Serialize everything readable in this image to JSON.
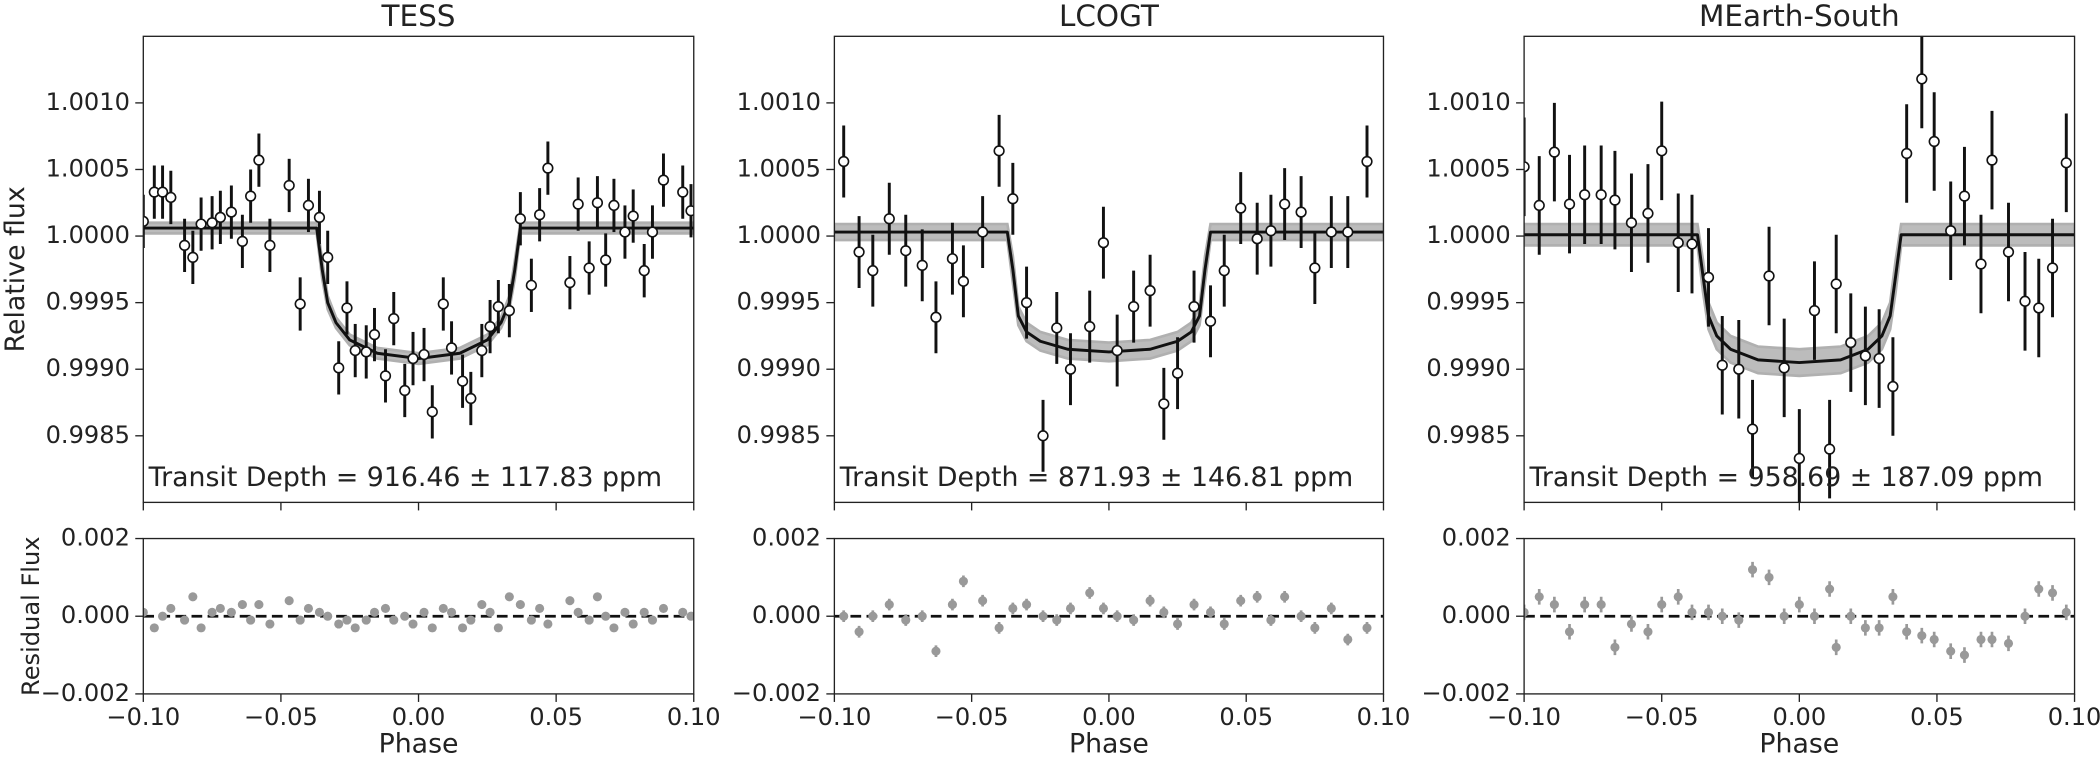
{
  "chart_data": [
    {
      "type": "scatter",
      "title": "TESS",
      "annotation": "Transit Depth = 916.46 ± 117.83 ppm",
      "ylabel": "Relative flux",
      "residual_ylabel": "Residual Flux",
      "xlabel": "Phase",
      "xlim": [
        -0.1,
        0.1
      ],
      "xticks": [
        {
          "value": -0.1,
          "label": "−0.10"
        },
        {
          "value": -0.05,
          "label": "−0.05"
        },
        {
          "value": 0,
          "label": "0.00"
        },
        {
          "value": 0.05,
          "label": "0.05"
        },
        {
          "value": 0.1,
          "label": "0.10"
        }
      ],
      "ylim": [
        0.998,
        1.0015
      ],
      "yticks": [
        0.9985,
        {
          "value": 0.999,
          "label": "0.9990"
        },
        0.9995,
        {
          "value": 1,
          "label": "1.0000"
        },
        1.0005,
        {
          "value": 1.001,
          "label": "1.0010"
        }
      ],
      "residual_ylim": [
        -0.002,
        0.002
      ],
      "residual_yticks": [
        {
          "value": -0.002,
          "label": "−0.002"
        },
        {
          "value": 0,
          "label": "0.000"
        },
        0.002
      ],
      "x": [
        -0.1,
        -0.096,
        -0.093,
        -0.09,
        -0.085,
        -0.082,
        -0.079,
        -0.075,
        -0.072,
        -0.068,
        -0.064,
        -0.061,
        -0.058,
        -0.054,
        -0.047,
        -0.043,
        -0.04,
        -0.036,
        -0.033,
        -0.029,
        -0.026,
        -0.023,
        -0.019,
        -0.016,
        -0.012,
        -0.009,
        -0.005,
        -0.002,
        0.002,
        0.005,
        0.009,
        0.012,
        0.016,
        0.019,
        0.023,
        0.026,
        0.029,
        0.033,
        0.037,
        0.041,
        0.044,
        0.047,
        0.055,
        0.058,
        0.062,
        0.065,
        0.068,
        0.071,
        0.075,
        0.078,
        0.082,
        0.085,
        0.089,
        0.096,
        0.099
      ],
      "values": [
        1.00011,
        1.00033,
        1.00033,
        1.00029,
        0.99993,
        0.99984,
        1.00009,
        1.0001,
        1.00014,
        1.00018,
        0.99996,
        1.0003,
        1.00057,
        0.99993,
        1.00038,
        0.99949,
        1.00023,
        1.00014,
        0.99984,
        0.99901,
        0.99946,
        0.99914,
        0.99913,
        0.99926,
        0.99895,
        0.99938,
        0.99884,
        0.99908,
        0.99911,
        0.99868,
        0.99949,
        0.99916,
        0.99891,
        0.99878,
        0.99914,
        0.99932,
        0.99947,
        0.99944,
        1.00013,
        0.99963,
        1.00016,
        1.00051,
        0.99965,
        1.00024,
        0.99976,
        1.00025,
        0.99982,
        1.00023,
        1.00003,
        1.00015,
        0.99974,
        1.00003,
        1.00042,
        1.00033,
        1.00019
      ],
      "error": 0.0002,
      "residuals": [
        0.0001,
        -0.0003,
        0.0,
        0.0002,
        -0.0001,
        0.0005,
        -0.0003,
        0.0001,
        0.0002,
        0.0001,
        0.0003,
        -0.0001,
        0.0003,
        -0.0002,
        0.0004,
        -0.0001,
        0.0002,
        0.0001,
        0.0,
        -0.0002,
        -0.0001,
        -0.0003,
        -0.0001,
        0.0001,
        0.0002,
        -0.0001,
        0.0,
        -0.0002,
        0.0001,
        -0.0003,
        0.0002,
        0.0001,
        -0.0003,
        -0.0001,
        0.0003,
        0.0001,
        -0.0003,
        0.0005,
        0.0003,
        -0.0001,
        0.0002,
        -0.0002,
        0.0004,
        0.0001,
        -0.0001,
        0.0005,
        0.0,
        -0.0003,
        0.0001,
        -0.0002,
        0.0001,
        -0.0001,
        0.0002,
        0.0001,
        0.0
      ],
      "residual_error": 0.0001,
      "model_x": [
        -0.1,
        -0.037,
        -0.035,
        -0.033,
        -0.03,
        -0.025,
        -0.015,
        0,
        0.015,
        0.025,
        0.03,
        0.033,
        0.035,
        0.037,
        0.1
      ],
      "model": [
        1.00006,
        1.00006,
        0.99975,
        0.9995,
        0.99935,
        0.99922,
        0.99912,
        0.99908,
        0.99912,
        0.99922,
        0.99935,
        0.9995,
        0.99975,
        1.00006,
        1.00006
      ],
      "model_lower": [
        1.00002,
        1.00002,
        0.99968,
        0.99945,
        0.99931,
        0.99918,
        0.99908,
        0.99904,
        0.99908,
        0.99918,
        0.99931,
        0.99945,
        0.99968,
        1.00002,
        1.00002
      ],
      "model_upper": [
        1.0001,
        1.0001,
        0.99982,
        0.99955,
        0.99939,
        0.99926,
        0.99916,
        0.99912,
        0.99916,
        0.99926,
        0.99939,
        0.99955,
        0.99982,
        1.0001,
        1.0001
      ],
      "color": "#111111",
      "point_color": "#ffffff",
      "band_color": "#b0b0b0",
      "residual_color": "#999999"
    },
    {
      "type": "scatter",
      "title": "LCOGT",
      "annotation": "Transit Depth = 871.93 ± 146.81 ppm",
      "xlabel": "Phase",
      "xlim": [
        -0.1,
        0.1
      ],
      "xticks": [
        {
          "value": -0.1,
          "label": "−0.10"
        },
        {
          "value": -0.05,
          "label": "−0.05"
        },
        {
          "value": 0,
          "label": "0.00"
        },
        {
          "value": 0.05,
          "label": "0.05"
        },
        {
          "value": 0.1,
          "label": "0.10"
        }
      ],
      "ylim": [
        0.998,
        1.0015
      ],
      "yticks": [
        0.9985,
        {
          "value": 0.999,
          "label": "0.9990"
        },
        0.9995,
        {
          "value": 1,
          "label": "1.0000"
        },
        1.0005,
        {
          "value": 1.001,
          "label": "1.0010"
        }
      ],
      "residual_ylim": [
        -0.002,
        0.002
      ],
      "residual_yticks": [
        {
          "value": -0.002,
          "label": "−0.002"
        },
        {
          "value": 0,
          "label": "0.000"
        },
        0.002
      ],
      "x": [
        -0.0966,
        -0.091,
        -0.086,
        -0.08,
        -0.074,
        -0.068,
        -0.063,
        -0.057,
        -0.053,
        -0.046,
        -0.04,
        -0.035,
        -0.03,
        -0.024,
        -0.019,
        -0.014,
        -0.007,
        -0.002,
        0.003,
        0.009,
        0.015,
        0.02,
        0.025,
        0.031,
        0.037,
        0.042,
        0.048,
        0.054,
        0.059,
        0.064,
        0.07,
        0.075,
        0.081,
        0.087,
        0.094
      ],
      "values": [
        1.00056,
        0.99988,
        0.99974,
        1.00013,
        0.99989,
        0.99978,
        0.99939,
        0.99983,
        0.99966,
        1.00003,
        1.00064,
        1.00028,
        0.9995,
        0.9985,
        0.99931,
        0.999,
        0.99932,
        0.99995,
        0.99914,
        0.99947,
        0.99959,
        0.99874,
        0.99897,
        0.99947,
        0.99936,
        0.99974,
        1.00021,
        0.99998,
        1.00004,
        1.00024,
        1.00018,
        0.99976,
        1.00003,
        1.00003,
        1.00056
      ],
      "error": 0.00027,
      "residuals": [
        0.0,
        -0.0004,
        0.0,
        0.0003,
        -0.0001,
        0.0,
        -0.0009,
        0.0003,
        0.0009,
        0.0004,
        -0.0003,
        0.0002,
        0.0003,
        0.0,
        -0.0001,
        0.0002,
        0.0006,
        0.0002,
        0.0,
        -0.0001,
        0.0004,
        0.0001,
        -0.0002,
        0.0003,
        0.0001,
        -0.0002,
        0.0004,
        0.0005,
        -0.0001,
        0.0005,
        0.0,
        -0.0003,
        0.0002,
        -0.0006,
        -0.0003
      ],
      "residual_error": 0.00015,
      "model_x": [
        -0.1,
        -0.037,
        -0.035,
        -0.033,
        -0.03,
        -0.025,
        -0.015,
        0,
        0.015,
        0.025,
        0.03,
        0.033,
        0.035,
        0.037,
        0.1
      ],
      "model": [
        1.00003,
        1.00003,
        0.99975,
        0.9994,
        0.99928,
        0.99921,
        0.99915,
        0.99913,
        0.99915,
        0.99921,
        0.99928,
        0.9994,
        0.99975,
        1.00003,
        1.00003
      ],
      "model_lower": [
        0.99997,
        0.99997,
        0.99965,
        0.99933,
        0.99921,
        0.99914,
        0.99908,
        0.99906,
        0.99908,
        0.99914,
        0.99921,
        0.99933,
        0.99965,
        0.99997,
        0.99997
      ],
      "model_upper": [
        1.00009,
        1.00009,
        0.99985,
        0.99947,
        0.99935,
        0.99928,
        0.99922,
        0.9992,
        0.99922,
        0.99928,
        0.99935,
        0.99947,
        0.99985,
        1.00009,
        1.00009
      ],
      "color": "#111111",
      "point_color": "#ffffff",
      "band_color": "#b0b0b0",
      "residual_color": "#999999"
    },
    {
      "type": "scatter",
      "title": "MEarth-South",
      "annotation": "Transit Depth = 958.69 ± 187.09 ppm",
      "xlabel": "Phase",
      "xlim": [
        -0.1,
        0.1
      ],
      "xticks": [
        {
          "value": -0.1,
          "label": "−0.10"
        },
        {
          "value": -0.05,
          "label": "−0.05"
        },
        {
          "value": 0,
          "label": "0.00"
        },
        {
          "value": 0.05,
          "label": "0.05"
        },
        {
          "value": 0.1,
          "label": "0.10"
        }
      ],
      "ylim": [
        0.998,
        1.0015
      ],
      "yticks": [
        0.9985,
        {
          "value": 0.999,
          "label": "0.9990"
        },
        0.9995,
        {
          "value": 1,
          "label": "1.0000"
        },
        1.0005,
        {
          "value": 1.001,
          "label": "1.0010"
        }
      ],
      "residual_ylim": [
        -0.002,
        0.002
      ],
      "residual_yticks": [
        {
          "value": -0.002,
          "label": "−0.002"
        },
        {
          "value": 0,
          "label": "0.000"
        },
        0.002
      ],
      "x": [
        -0.1,
        -0.0945,
        -0.089,
        -0.0835,
        -0.078,
        -0.072,
        -0.067,
        -0.061,
        -0.055,
        -0.05,
        -0.044,
        -0.039,
        -0.033,
        -0.028,
        -0.022,
        -0.017,
        -0.011,
        -0.0055,
        0.0,
        0.0055,
        0.011,
        0.0134,
        0.0187,
        0.024,
        0.029,
        0.034,
        0.039,
        0.0445,
        0.049,
        0.055,
        0.06,
        0.066,
        0.07,
        0.076,
        0.082,
        0.087,
        0.092,
        0.097
      ],
      "values": [
        1.00052,
        1.00023,
        1.00063,
        1.00024,
        1.00031,
        1.00031,
        1.00027,
        1.0001,
        1.00017,
        1.00064,
        0.99995,
        0.99994,
        0.99969,
        0.99903,
        0.999,
        0.99855,
        0.9997,
        0.99901,
        0.99833,
        0.99944,
        0.9984,
        0.99964,
        0.9992,
        0.9991,
        0.99908,
        0.99887,
        1.00062,
        1.00118,
        1.00071,
        1.00004,
        1.0003,
        0.99979,
        1.00057,
        0.99988,
        0.99951,
        0.99946,
        0.99976,
        1.00055
      ],
      "error": 0.00037,
      "residuals": [
        0.0001,
        0.0005,
        0.0003,
        -0.0004,
        0.0003,
        0.0003,
        -0.0008,
        -0.0002,
        -0.0004,
        0.0003,
        0.0005,
        0.0001,
        0.0001,
        0.0,
        -0.0001,
        0.0012,
        0.001,
        0.0,
        0.0003,
        0.0,
        0.0007,
        -0.0008,
        0.0,
        -0.0003,
        -0.0003,
        0.0005,
        -0.0004,
        -0.0005,
        -0.0006,
        -0.0009,
        -0.001,
        -0.0006,
        -0.0006,
        -0.0007,
        0.0,
        0.0007,
        0.0006,
        0.0001
      ],
      "residual_error": 0.0002,
      "model_x": [
        -0.1,
        -0.037,
        -0.035,
        -0.033,
        -0.03,
        -0.025,
        -0.015,
        0,
        0.015,
        0.025,
        0.03,
        0.033,
        0.035,
        0.037,
        0.1
      ],
      "model": [
        1.00001,
        1.00001,
        0.9997,
        0.9994,
        0.99925,
        0.99915,
        0.99907,
        0.99905,
        0.99907,
        0.99915,
        0.99925,
        0.9994,
        0.9997,
        1.00001,
        1.00001
      ],
      "model_lower": [
        0.99993,
        0.99993,
        0.99958,
        0.9993,
        0.99915,
        0.99905,
        0.99897,
        0.99895,
        0.99897,
        0.99905,
        0.99915,
        0.9993,
        0.99958,
        0.99993,
        0.99993
      ],
      "model_upper": [
        1.00009,
        1.00009,
        0.99982,
        0.9995,
        0.99935,
        0.99925,
        0.99917,
        0.99915,
        0.99917,
        0.99925,
        0.99935,
        0.9995,
        0.99982,
        1.00009,
        1.00009
      ],
      "color": "#111111",
      "point_color": "#ffffff",
      "band_color": "#b0b0b0",
      "residual_color": "#999999"
    }
  ]
}
